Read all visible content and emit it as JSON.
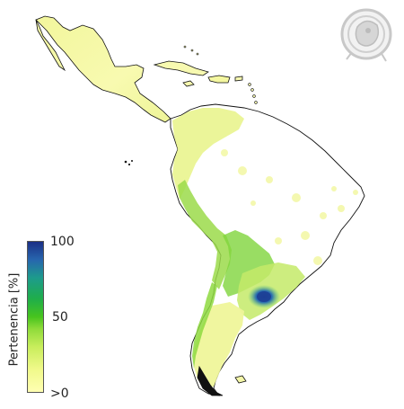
{
  "legend": {
    "title": "Pertenencia [%]",
    "ticks": {
      "max": "100",
      "mid": "50",
      "min": ">0"
    }
  },
  "colors": {
    "low": "#ffffb2",
    "mid": "#47c41e",
    "high": "#1b2f86",
    "land_outline": "#111111"
  },
  "icons": {
    "logo": "seal-logo-icon"
  }
}
